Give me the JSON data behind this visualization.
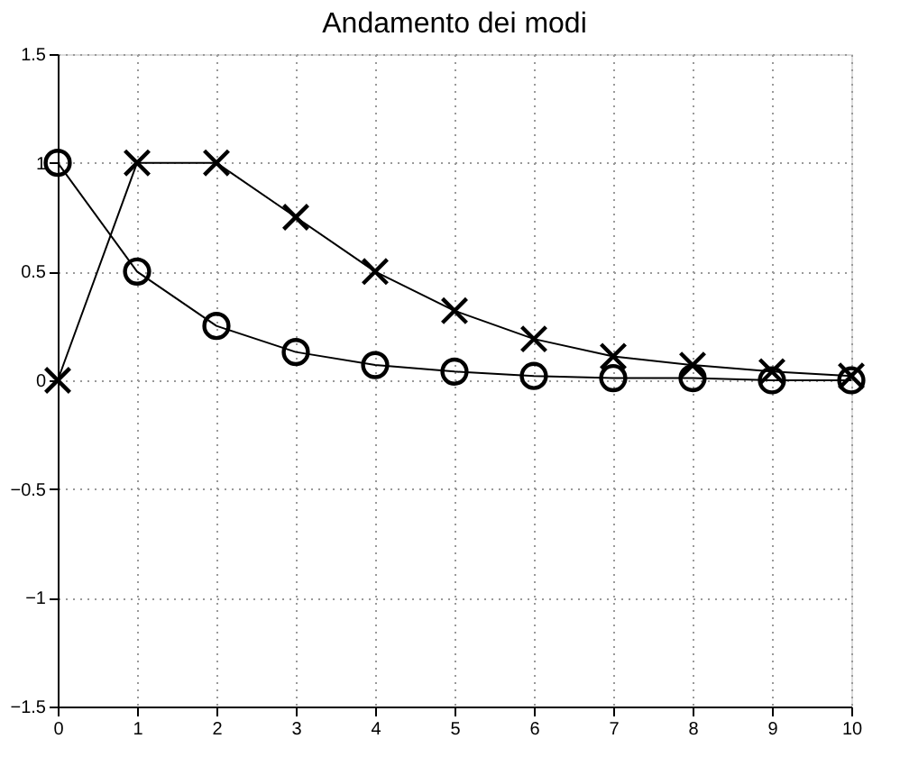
{
  "chart_data": {
    "type": "line",
    "title": "Andamento dei modi",
    "x": [
      0,
      1,
      2,
      3,
      4,
      5,
      6,
      7,
      8,
      9,
      10
    ],
    "series": [
      {
        "color": "#000000",
        "marker": "circle",
        "values": [
          1,
          0.5,
          0.25,
          0.13,
          0.07,
          0.04,
          0.02,
          0.01,
          0.01,
          0,
          0
        ]
      },
      {
        "color": "#000000",
        "marker": "cross",
        "values": [
          0,
          1,
          1,
          0.75,
          0.5,
          0.32,
          0.19,
          0.11,
          0.07,
          0.04,
          0.02
        ]
      }
    ],
    "xlim": [
      0,
      10
    ],
    "xticks": [
      0,
      1,
      2,
      3,
      4,
      5,
      6,
      7,
      8,
      9,
      10
    ],
    "ylim": [
      -1.5,
      1.5
    ],
    "yticks": [
      -1.5,
      -1,
      -0.5,
      0,
      0.5,
      1,
      1.5
    ],
    "grid": true,
    "line_style": "solid"
  }
}
